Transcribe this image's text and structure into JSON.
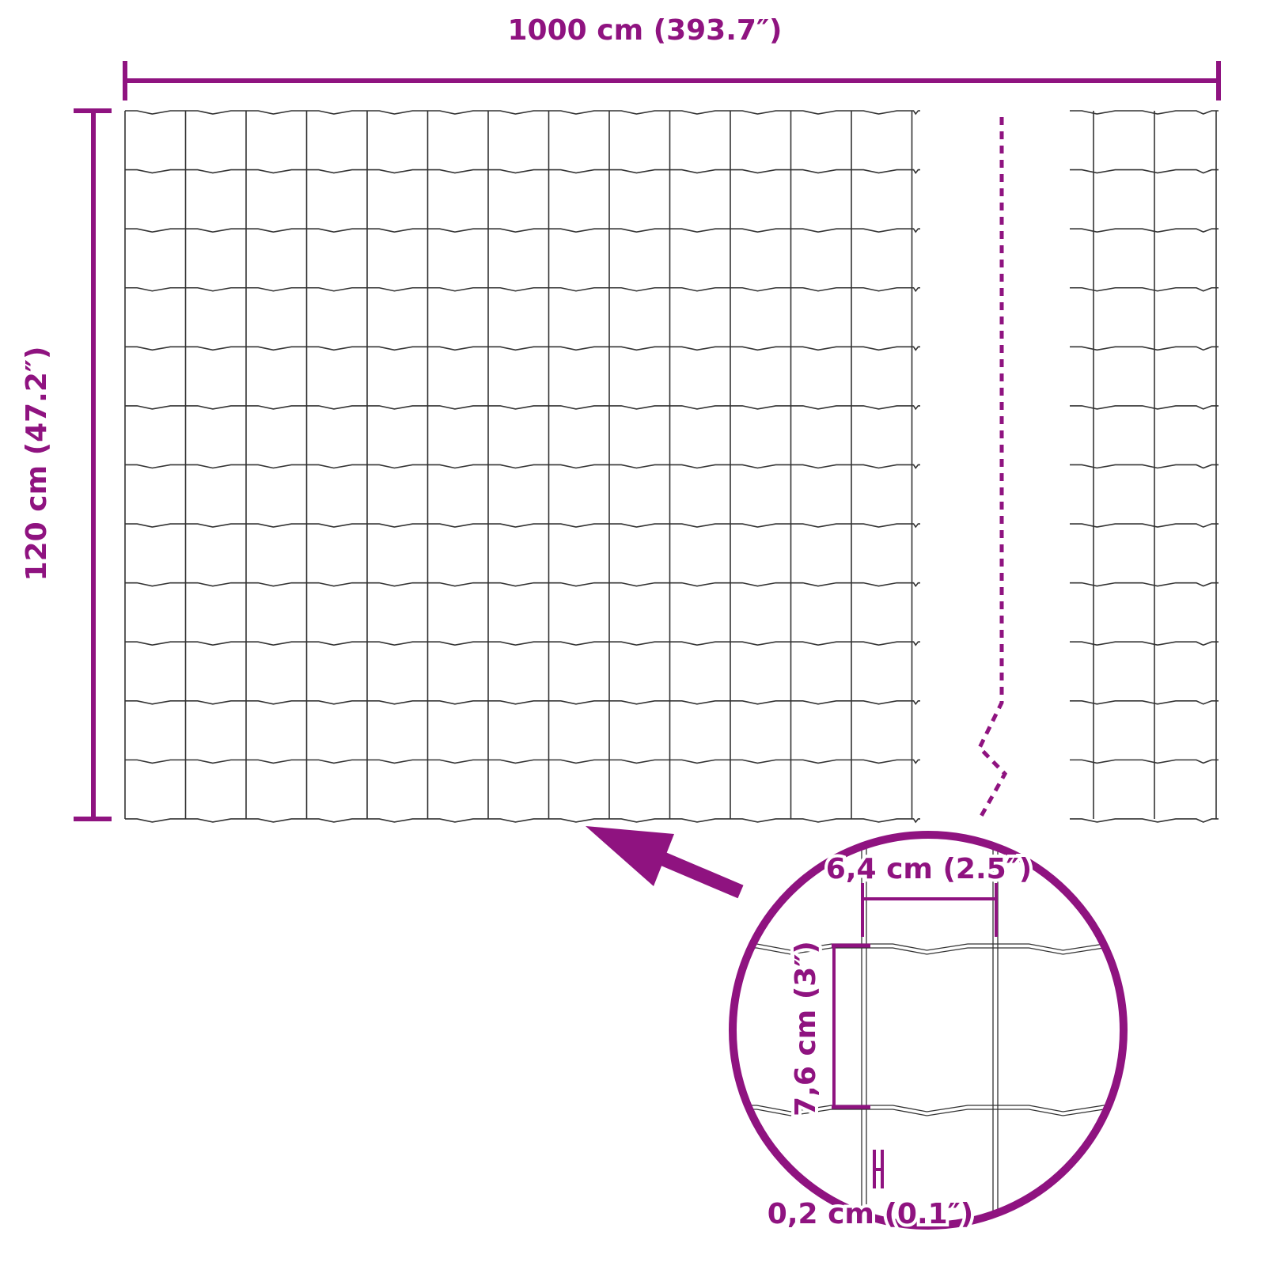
{
  "dimensions": {
    "width_label": "1000 cm (393.7″)",
    "height_label": "120 cm (47.2″)",
    "mesh_width_label": "6,4 cm (2.5″)",
    "mesh_height_label": "7,6 cm (3″)",
    "wire_thickness_label": "0,2 cm (0.1″)"
  },
  "colors": {
    "accent": "#8f1380",
    "wire": "#333333",
    "background": "#ffffff"
  }
}
